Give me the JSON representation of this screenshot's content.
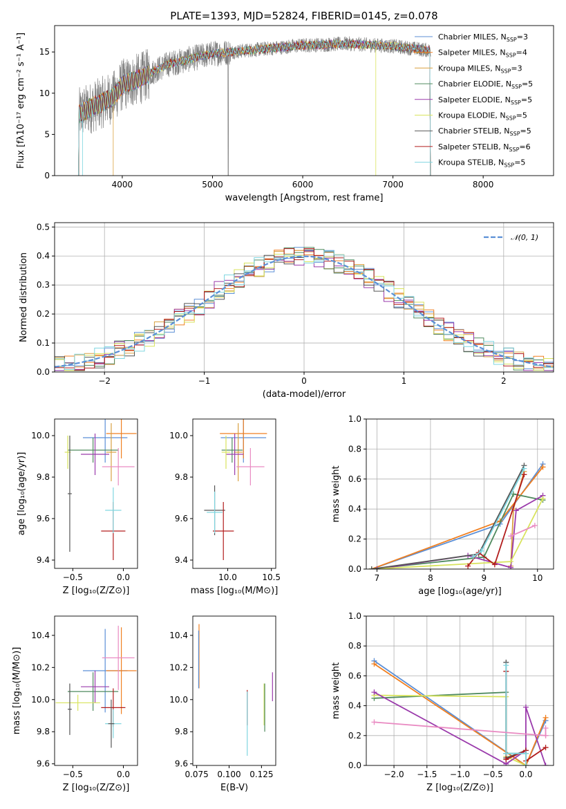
{
  "figure_title": "PLATE=1393, MJD=52824, FIBERID=0145, z=0.078",
  "colors": {
    "Chabrier MILES": "#5b8fd6",
    "Salpeter MILES": "#f07f20",
    "Kroupa MILES": "#d9a040",
    "Chabrier ELODIE": "#4f8a5e",
    "Salpeter ELODIE": "#9a3aab",
    "Kroupa ELODIE": "#d8e35c",
    "Chabrier STELIB": "#555555",
    "Salpeter STELIB": "#b21c1c",
    "Kroupa STELIB": "#7fd6e0",
    "pink": "#e98ac2",
    "gauss": "#5b8fd6"
  },
  "chart_data": [
    {
      "id": "spectrum",
      "type": "line",
      "xlabel": "wavelength [Angstrom, rest frame]",
      "ylabel": "Flux [fλ10⁻¹⁷ erg cm⁻² s⁻¹ A⁻¹]",
      "xlim": [
        3250,
        8780
      ],
      "ylim": [
        0,
        18.2
      ],
      "xticks": [
        4000,
        5000,
        6000,
        7000,
        8000
      ],
      "yticks": [
        0,
        5,
        10,
        15
      ],
      "grid": false,
      "legend_position": "upper right",
      "continuum": {
        "x": [
          3520,
          3700,
          3900,
          4000,
          4200,
          4500,
          5000,
          5500,
          6000,
          6500,
          7000,
          7400
        ],
        "y": [
          7.5,
          8.5,
          9.5,
          11,
          11.8,
          13.5,
          14.8,
          15.3,
          15.8,
          16.0,
          15.7,
          15.2
        ]
      },
      "range": [
        3520,
        7420
      ],
      "series": [
        {
          "name": "Chabrier MILES, N_SSP=3",
          "label": "Chabrier MILES, N",
          "nssp": "=3"
        },
        {
          "name": "Salpeter MILES, N_SSP=4",
          "label": "Salpeter MILES, N",
          "nssp": "=4"
        },
        {
          "name": "Kroupa MILES, N_SSP=3",
          "label": "Kroupa MILES, N",
          "nssp": "=3"
        },
        {
          "name": "Chabrier ELODIE, N_SSP=5",
          "label": "Chabrier ELODIE, N",
          "nssp": "=5"
        },
        {
          "name": "Salpeter ELODIE, N_SSP=5",
          "label": "Salpeter ELODIE, N",
          "nssp": "=5"
        },
        {
          "name": "Kroupa ELODIE, N_SSP=5",
          "label": "Kroupa ELODIE, N",
          "nssp": "=5"
        },
        {
          "name": "Chabrier STELIB, N_SSP=5",
          "label": "Chabrier STELIB, N",
          "nssp": "=5"
        },
        {
          "name": "Salpeter STELIB, N_SSP=6",
          "label": "Salpeter STELIB, N",
          "nssp": "=6"
        },
        {
          "name": "Kroupa STELIB, N_SSP=5",
          "label": "Kroupa STELIB, N",
          "nssp": "=5"
        }
      ],
      "nssp_sub": "SSP"
    },
    {
      "id": "residuals",
      "type": "histogram",
      "xlabel": "(data-model)/error",
      "ylabel": "Normed distribution",
      "xlim": [
        -2.5,
        2.5
      ],
      "ylim": [
        0,
        0.515
      ],
      "xticks": [
        -2,
        -1,
        0,
        1,
        2
      ],
      "yticks": [
        0.0,
        0.1,
        0.2,
        0.3,
        0.4,
        0.5
      ],
      "grid": true,
      "legend_position": "upper right",
      "gauss_label": "𝒩(0, 1)",
      "gauss": {
        "mean": 0,
        "sigma": 1
      },
      "bin_width": 0.1
    },
    {
      "id": "age_vs_Z",
      "type": "errorbar",
      "xlabel": "Z [log₁₀(Z/Z⊙)]",
      "ylabel": "age  [log₁₀(age/yr)]",
      "xlim": [
        -0.68,
        0.14
      ],
      "ylim": [
        9.36,
        10.08
      ],
      "xticks": [
        -0.5,
        0.0
      ],
      "yticks": [
        9.4,
        9.6,
        9.8,
        10.0
      ],
      "points": [
        {
          "c": "Chabrier MILES",
          "x": -0.18,
          "y": 9.99,
          "xe": 0.22,
          "ye": 0.12
        },
        {
          "c": "Salpeter MILES",
          "x": -0.02,
          "y": 10.01,
          "xe": 0.15,
          "ye": 0.12
        },
        {
          "c": "Kroupa MILES",
          "x": -0.12,
          "y": 9.92,
          "xe": 0.05,
          "ye": 0.14
        },
        {
          "c": "Chabrier ELODIE",
          "x": -0.3,
          "y": 9.93,
          "xe": 0.25,
          "ye": 0.06
        },
        {
          "c": "Salpeter ELODIE",
          "x": -0.28,
          "y": 9.91,
          "xe": 0.14,
          "ye": 0.1
        },
        {
          "c": "Kroupa ELODIE",
          "x": -0.55,
          "y": 9.92,
          "xe": 0.03,
          "ye": 0.08
        },
        {
          "c": "Chabrier STELIB",
          "x": -0.53,
          "y": 9.72,
          "xe": 0.02,
          "ye": 0.28
        },
        {
          "c": "Salpeter STELIB",
          "x": -0.1,
          "y": 9.54,
          "xe": 0.12,
          "ye": 0.14
        },
        {
          "c": "Kroupa STELIB",
          "x": -0.1,
          "y": 9.64,
          "xe": 0.08,
          "ye": 0.11
        },
        {
          "c": "pink",
          "x": -0.05,
          "y": 9.85,
          "xe": 0.16,
          "ye": 0.09
        }
      ]
    },
    {
      "id": "age_vs_mass",
      "type": "errorbar",
      "xlabel": "mass [log₁₀(M/M⊙)]",
      "xlim": [
        9.6,
        10.55
      ],
      "ylim": [
        9.36,
        10.08
      ],
      "xticks": [
        10.0,
        10.5
      ],
      "yticks": [
        9.4,
        9.6,
        9.8,
        10.0
      ],
      "points": [
        {
          "c": "Chabrier MILES",
          "x": 10.18,
          "y": 9.99,
          "xe": 0.26,
          "ye": 0.12
        },
        {
          "c": "Salpeter MILES",
          "x": 10.18,
          "y": 10.01,
          "xe": 0.27,
          "ye": 0.12
        },
        {
          "c": "Kroupa MILES",
          "x": 10.12,
          "y": 9.92,
          "xe": 0.05,
          "ye": 0.14
        },
        {
          "c": "Chabrier ELODIE",
          "x": 10.05,
          "y": 9.93,
          "xe": 0.12,
          "ye": 0.06
        },
        {
          "c": "Salpeter ELODIE",
          "x": 10.08,
          "y": 9.91,
          "xe": 0.1,
          "ye": 0.1
        },
        {
          "c": "Kroupa ELODIE",
          "x": 9.98,
          "y": 9.92,
          "xe": 0.05,
          "ye": 0.08
        },
        {
          "c": "Chabrier STELIB",
          "x": 9.85,
          "y": 9.64,
          "xe": 0.12,
          "ye": 0.12
        },
        {
          "c": "Salpeter STELIB",
          "x": 9.95,
          "y": 9.54,
          "xe": 0.12,
          "ye": 0.14
        },
        {
          "c": "Kroupa STELIB",
          "x": 9.85,
          "y": 9.63,
          "xe": 0.09,
          "ye": 0.1
        },
        {
          "c": "pink",
          "x": 10.26,
          "y": 9.85,
          "xe": 0.16,
          "ye": 0.09
        }
      ]
    },
    {
      "id": "weight_vs_age",
      "type": "line",
      "xlabel": "age  [log₁₀(age/yr)]",
      "ylabel": "mass weight",
      "xlim": [
        6.8,
        10.3
      ],
      "ylim": [
        0,
        1.0
      ],
      "xticks": [
        7,
        8,
        9,
        10
      ],
      "yticks": [
        0.0,
        0.2,
        0.4,
        0.6,
        0.8,
        1.0
      ],
      "grid": true,
      "series": [
        {
          "c": "Chabrier MILES",
          "x": [
            6.9,
            9.3,
            10.1
          ],
          "y": [
            0.0,
            0.3,
            0.7
          ]
        },
        {
          "c": "Salpeter MILES",
          "x": [
            6.9,
            9.3,
            10.1
          ],
          "y": [
            0.0,
            0.32,
            0.68
          ]
        },
        {
          "c": "Kroupa MILES",
          "x": [
            9.5,
            9.55,
            9.75
          ],
          "y": [
            0.02,
            0.4,
            0.65
          ]
        },
        {
          "c": "Chabrier ELODIE",
          "x": [
            6.9,
            9.0,
            9.55,
            10.1
          ],
          "y": [
            0.0,
            0.08,
            0.5,
            0.46
          ]
        },
        {
          "c": "Salpeter ELODIE",
          "x": [
            7.0,
            8.7,
            9.5,
            9.6,
            10.1
          ],
          "y": [
            0.0,
            0.09,
            0.01,
            0.39,
            0.49
          ]
        },
        {
          "c": "Kroupa ELODIE",
          "x": [
            6.9,
            9.5,
            10.1
          ],
          "y": [
            0.0,
            0.05,
            0.47
          ]
        },
        {
          "c": "Chabrier STELIB",
          "x": [
            6.9,
            8.9,
            9.75
          ],
          "y": [
            0.0,
            0.1,
            0.69
          ]
        },
        {
          "c": "Salpeter STELIB",
          "x": [
            8.7,
            8.9,
            9.2,
            9.75
          ],
          "y": [
            0.02,
            0.11,
            0.03,
            0.63
          ]
        },
        {
          "c": "Kroupa STELIB",
          "x": [
            8.8,
            8.95,
            9.75
          ],
          "y": [
            0.08,
            0.12,
            0.67
          ]
        },
        {
          "c": "pink",
          "x": [
            9.5,
            9.95
          ],
          "y": [
            0.22,
            0.29
          ]
        }
      ]
    },
    {
      "id": "mass_vs_Z",
      "type": "errorbar",
      "xlabel": "Z [log₁₀(Z/Z⊙)]",
      "ylabel": "mass [log₁₀(M/M⊙)]",
      "xlim": [
        -0.68,
        0.14
      ],
      "ylim": [
        9.59,
        10.52
      ],
      "xticks": [
        -0.5,
        0.0
      ],
      "yticks": [
        9.6,
        9.8,
        10.0,
        10.2,
        10.4
      ],
      "points": [
        {
          "c": "Chabrier MILES",
          "x": -0.18,
          "y": 10.18,
          "xe": 0.22,
          "ye": 0.26
        },
        {
          "c": "Salpeter MILES",
          "x": -0.02,
          "y": 10.18,
          "xe": 0.15,
          "ye": 0.27
        },
        {
          "c": "Chabrier ELODIE",
          "x": -0.3,
          "y": 10.05,
          "xe": 0.25,
          "ye": 0.12
        },
        {
          "c": "Salpeter ELODIE",
          "x": -0.28,
          "y": 10.08,
          "xe": 0.14,
          "ye": 0.1
        },
        {
          "c": "Kroupa ELODIE",
          "x": -0.45,
          "y": 9.98,
          "xe": 0.22,
          "ye": 0.05
        },
        {
          "c": "Chabrier STELIB",
          "x": -0.53,
          "y": 9.94,
          "xe": 0.02,
          "ye": 0.16
        },
        {
          "c": "Salpeter STELIB",
          "x": -0.1,
          "y": 9.95,
          "xe": 0.12,
          "ye": 0.12
        },
        {
          "c": "Kroupa STELIB",
          "x": -0.1,
          "y": 9.85,
          "xe": 0.08,
          "ye": 0.09
        },
        {
          "c": "Chabrier STELIB",
          "x": -0.12,
          "y": 9.85,
          "xe": 0.03,
          "ye": 0.15
        },
        {
          "c": "pink",
          "x": -0.05,
          "y": 10.26,
          "xe": 0.16,
          "ye": 0.2
        }
      ]
    },
    {
      "id": "mass_vs_EBV",
      "type": "errorbar",
      "xlabel": "E(B-V)",
      "xlim": [
        0.072,
        0.136
      ],
      "ylim": [
        9.59,
        10.52
      ],
      "xticks": [
        0.075,
        0.1,
        0.125
      ],
      "xticklabels": [
        "0.075",
        "0.100",
        "0.125"
      ],
      "yticks": [
        9.6,
        9.8,
        10.0,
        10.2,
        10.4
      ],
      "points": [
        {
          "c": "Salpeter MILES",
          "x": 0.0768,
          "y": 10.27,
          "xe": 0.0,
          "ye": 0.2
        },
        {
          "c": "Chabrier MILES",
          "x": 0.0765,
          "y": 10.25,
          "xe": 0.0,
          "ye": 0.18
        },
        {
          "c": "Salpeter STELIB",
          "x": 0.114,
          "y": 9.95,
          "xe": 0.0,
          "ye": 0.11
        },
        {
          "c": "Kroupa STELIB",
          "x": 0.114,
          "y": 9.85,
          "xe": 0.0,
          "ye": 0.2
        },
        {
          "c": "Kroupa ELODIE",
          "x": 0.127,
          "y": 9.97,
          "xe": 0.0,
          "ye": 0.13
        },
        {
          "c": "Chabrier ELODIE",
          "x": 0.1275,
          "y": 9.95,
          "xe": 0.0,
          "ye": 0.15
        },
        {
          "c": "Salpeter ELODIE",
          "x": 0.1335,
          "y": 10.08,
          "xe": 0.0,
          "ye": 0.09
        }
      ]
    },
    {
      "id": "weight_vs_Z",
      "type": "line",
      "xlabel": "Z [log₁₀(Z/Z⊙)]",
      "ylabel": "mass weight",
      "xlim": [
        -2.42,
        0.42
      ],
      "ylim": [
        0,
        1.0
      ],
      "xticks": [
        -2.0,
        -1.5,
        -1.0,
        -0.5,
        0.0
      ],
      "yticks": [
        0.0,
        0.2,
        0.4,
        0.6,
        0.8,
        1.0
      ],
      "grid": true,
      "series": [
        {
          "c": "Chabrier MILES",
          "x": [
            -2.3,
            0.0,
            0.3
          ],
          "y": [
            0.7,
            0.0,
            0.3
          ]
        },
        {
          "c": "Salpeter MILES",
          "x": [
            -2.3,
            0.0,
            0.3
          ],
          "y": [
            0.68,
            0.0,
            0.32
          ]
        },
        {
          "c": "Chabrier ELODIE",
          "x": [
            -2.3,
            -0.3,
            -0.3,
            0.0
          ],
          "y": [
            0.45,
            0.49,
            0.08,
            0.08
          ]
        },
        {
          "c": "Kroupa ELODIE",
          "x": [
            -2.3,
            -0.3,
            -0.3,
            0.0
          ],
          "y": [
            0.47,
            0.46,
            0.06,
            0.0
          ]
        },
        {
          "c": "Salpeter ELODIE",
          "x": [
            -2.3,
            -0.3,
            0.0,
            0.0,
            0.3
          ],
          "y": [
            0.49,
            0.01,
            0.1,
            0.39,
            0.0
          ]
        },
        {
          "c": "Chabrier STELIB",
          "x": [
            -0.3,
            -0.3,
            0.0
          ],
          "y": [
            0.69,
            0.05,
            0.1
          ]
        },
        {
          "c": "Salpeter STELIB",
          "x": [
            -0.3,
            -0.3,
            0.0,
            0.0,
            0.3
          ],
          "y": [
            0.63,
            0.04,
            0.1,
            0.03,
            0.12
          ]
        },
        {
          "c": "Kroupa STELIB",
          "x": [
            -0.3,
            -0.3,
            0.0,
            0.0
          ],
          "y": [
            0.67,
            0.08,
            0.08,
            0.0
          ]
        },
        {
          "c": "pink",
          "x": [
            -2.3,
            0.3
          ],
          "y": [
            0.29,
            0.2
          ]
        },
        {
          "c": "pink",
          "x": [
            0.3,
            0.3
          ],
          "y": [
            0.2,
            0.25
          ]
        }
      ]
    }
  ]
}
